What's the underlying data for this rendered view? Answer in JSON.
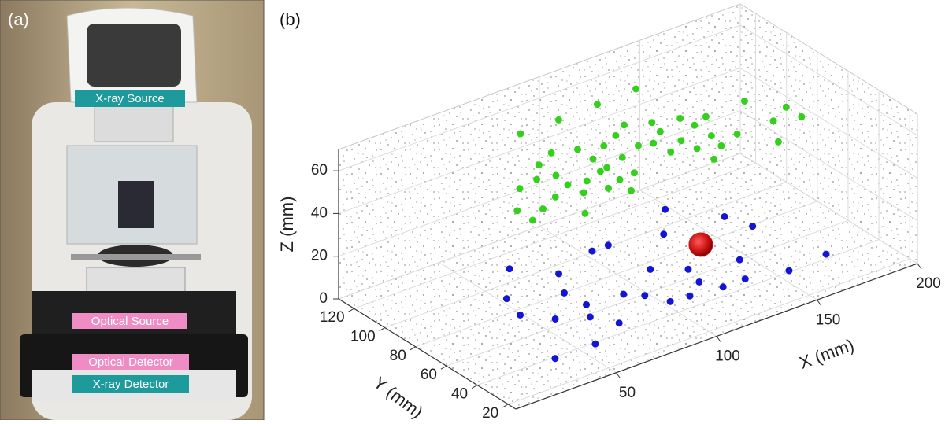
{
  "panels": {
    "a": {
      "label": "(a)",
      "annotations": [
        "X-ray Source",
        "Optical Source",
        "Optical Detector",
        "X-ray Detector"
      ]
    },
    "b": {
      "label": "(b)"
    }
  },
  "chart_data": {
    "type": "scatter3d",
    "xlabel": "X (mm)",
    "ylabel": "Y (mm)",
    "zlabel": "Z (mm)",
    "xlim": [
      0,
      200
    ],
    "ylim": [
      15,
      130
    ],
    "zlim": [
      0,
      70
    ],
    "xticks": [
      50,
      100,
      150,
      200
    ],
    "yticks": [
      20,
      40,
      60,
      80,
      100,
      120
    ],
    "zticks": [
      0,
      20,
      40,
      60
    ],
    "grid": true,
    "series": [
      {
        "color": "#1414d6",
        "x": [
          69,
          53,
          49,
          58,
          82,
          74,
          75,
          70,
          104,
          112,
          58,
          76,
          38,
          92,
          98,
          113,
          103,
          112,
          125,
          148,
          135,
          122,
          127,
          163,
          167,
          146,
          138,
          156,
          176
        ],
        "y": [
          109,
          90,
          76,
          65,
          94,
          80,
          67,
          58,
          101,
          101,
          39,
          47,
          39,
          65,
          59,
          75,
          49,
          48,
          66,
          111,
          95,
          55,
          46,
          92,
          79,
          60,
          46,
          41,
          43
        ],
        "z": [
          0,
          0,
          0,
          0,
          0,
          0,
          0,
          0,
          0,
          0,
          0,
          0,
          0,
          0,
          0,
          0,
          0,
          0,
          0,
          0,
          0,
          0,
          0,
          0,
          0,
          0,
          0,
          0,
          0
        ]
      },
      {
        "color": "#cc1414",
        "x": [
          109
        ],
        "y": [
          37
        ],
        "z": [
          30
        ]
      },
      {
        "color": "#33d11c",
        "x": [
          76,
          95,
          115,
          135,
          48,
          66,
          58,
          76,
          66,
          36,
          36,
          45,
          55,
          65,
          86,
          66,
          56,
          73,
          86,
          82,
          96,
          86,
          76,
          105,
          84,
          113,
          96,
          82,
          92,
          107,
          123,
          113,
          121,
          114,
          134,
          123,
          135,
          124,
          143,
          135,
          124,
          133,
          144,
          163,
          162,
          153,
          173,
          173
        ],
        "y": [
          111,
          111,
          112,
          113,
          75,
          86,
          77,
          91,
          75,
          61,
          51,
          56,
          61,
          66,
          87,
          57,
          43,
          64,
          77,
          67,
          83,
          68,
          54,
          87,
          57,
          92,
          71,
          47,
          58,
          75,
          87,
          73,
          79,
          63,
          83,
          68,
          75,
          59,
          78,
          64,
          48,
          55,
          59,
          79,
          59,
          44,
          65,
          55
        ],
        "z": [
          60,
          60,
          60,
          60,
          60,
          60,
          60,
          60,
          60,
          60,
          60,
          60,
          60,
          60,
          60,
          60,
          60,
          60,
          60,
          60,
          60,
          60,
          60,
          60,
          60,
          60,
          60,
          60,
          60,
          60,
          60,
          60,
          60,
          60,
          60,
          60,
          60,
          60,
          60,
          60,
          60,
          60,
          60,
          60,
          60,
          60,
          60,
          60
        ]
      }
    ]
  }
}
